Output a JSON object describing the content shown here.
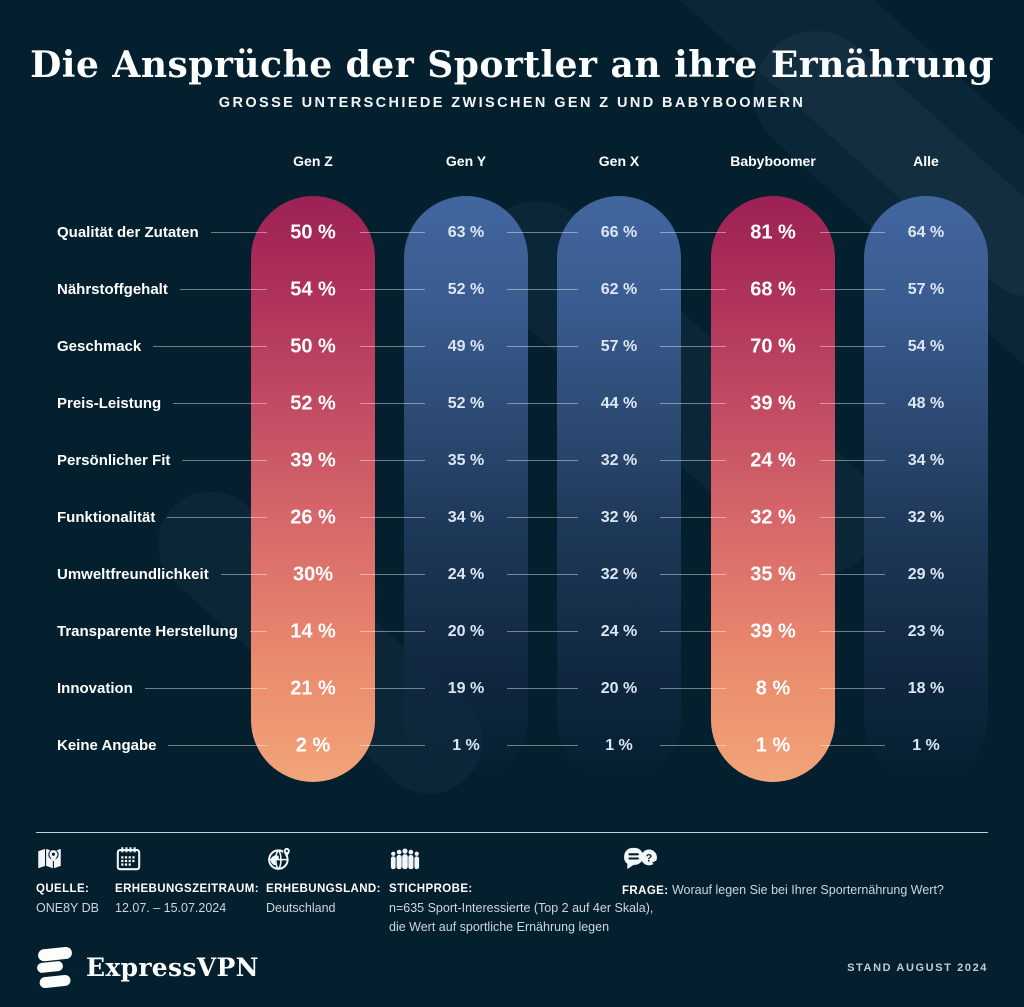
{
  "header": {
    "title": "Die Ansprüche der Sportler an ihre Ernährung",
    "subtitle": "GROSSE UNTERSCHIEDE ZWISCHEN GEN Z UND BABYBOOMERN"
  },
  "colors": {
    "background": "#04202f",
    "accent_pill_top": "#9c2155",
    "accent_pill_bottom": "#f2a478",
    "blue_pill_top": "#41669e"
  },
  "chart_data": {
    "type": "table",
    "title": "Die Ansprüche der Sportler an ihre Ernährung",
    "subtitle": "GROSSE UNTERSCHIEDE ZWISCHEN GEN Z UND BABYBOOMERN",
    "unit": "%",
    "columns": [
      {
        "label": "Gen Z",
        "style": "accent"
      },
      {
        "label": "Gen Y",
        "style": "blue"
      },
      {
        "label": "Gen X",
        "style": "blue"
      },
      {
        "label": "Babyboomer",
        "style": "accent"
      },
      {
        "label": "Alle",
        "style": "blue"
      }
    ],
    "categories": [
      "Qualität der Zutaten",
      "Nährstoffgehalt",
      "Geschmack",
      "Preis-Leistung",
      "Persönlicher Fit",
      "Funktionalität",
      "Umweltfreundlichkeit",
      "Transparente Herstellung",
      "Innovation",
      "Keine Angabe"
    ],
    "series": [
      {
        "name": "Gen Z",
        "values": [
          50,
          54,
          50,
          52,
          39,
          26,
          30,
          14,
          21,
          2
        ],
        "labels": [
          "50 %",
          "54 %",
          "50 %",
          "52 %",
          "39 %",
          "26 %",
          "30%",
          "14 %",
          "21 %",
          "2 %"
        ]
      },
      {
        "name": "Gen Y",
        "values": [
          63,
          52,
          49,
          52,
          35,
          34,
          24,
          20,
          19,
          1
        ],
        "labels": [
          "63 %",
          "52 %",
          "49 %",
          "52 %",
          "35 %",
          "34 %",
          "24 %",
          "20 %",
          "19 %",
          "1 %"
        ]
      },
      {
        "name": "Gen X",
        "values": [
          66,
          62,
          57,
          44,
          32,
          32,
          32,
          24,
          20,
          1
        ],
        "labels": [
          "66 %",
          "62 %",
          "57 %",
          "44 %",
          "32 %",
          "32 %",
          "32 %",
          "24 %",
          "20 %",
          "1 %"
        ]
      },
      {
        "name": "Babyboomer",
        "values": [
          81,
          68,
          70,
          39,
          24,
          32,
          35,
          39,
          8,
          1
        ],
        "labels": [
          "81 %",
          "68 %",
          "70 %",
          "39 %",
          "24 %",
          "32 %",
          "35 %",
          "39 %",
          "8 %",
          "1 %"
        ]
      },
      {
        "name": "Alle",
        "values": [
          64,
          57,
          54,
          48,
          34,
          32,
          29,
          23,
          18,
          1
        ],
        "labels": [
          "64 %",
          "57 %",
          "54 %",
          "48 %",
          "34 %",
          "32 %",
          "29 %",
          "23 %",
          "18 %",
          "1 %"
        ]
      }
    ]
  },
  "footer": {
    "items": [
      {
        "icon": "map-icon",
        "label": "QUELLE:",
        "line1": "ONE8Y DB",
        "line2": ""
      },
      {
        "icon": "calendar-icon",
        "label": "ERHEBUNGSZEITRAUM:",
        "line1": "12.07. – 15.07.2024",
        "line2": ""
      },
      {
        "icon": "globe-icon",
        "label": "ERHEBUNGSLAND:",
        "line1": "Deutschland",
        "line2": ""
      },
      {
        "icon": "people-icon",
        "label": "STICHPROBE:",
        "line1": "n=635 Sport-Interessierte (Top 2 auf 4er Skala),",
        "line2": "die Wert auf sportliche Ernährung legen"
      },
      {
        "icon": "question-icon",
        "label": "FRAGE:",
        "inline": "Worauf legen Sie bei Ihrer Sporternährung Wert?"
      }
    ]
  },
  "brand": {
    "wordmark": "ExpressVPN",
    "stand": "STAND AUGUST 2024"
  }
}
